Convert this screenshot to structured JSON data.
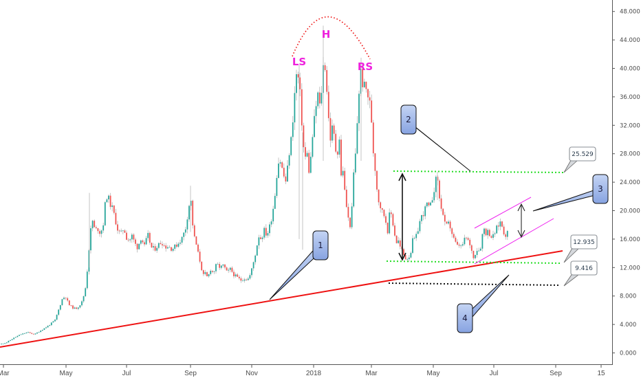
{
  "chart_data": {
    "type": "candlestick",
    "y_axis": {
      "ticks": [
        0,
        4,
        8,
        12,
        16,
        20,
        24,
        28,
        32,
        36,
        40,
        44,
        48
      ],
      "tick_labels": [
        "0.000",
        "4.000",
        "8.000",
        "12.000",
        "16.000",
        "20.000",
        "24.000",
        "28.000",
        "32.000",
        "36.000",
        "40.000",
        "44.000",
        "48.000"
      ],
      "ylim": [
        -1.5,
        49.5
      ]
    },
    "x_axis": {
      "tick_labels": [
        "Mar",
        "May",
        "Jul",
        "Sep",
        "Nov",
        "2018",
        "Mar",
        "May",
        "Jul",
        "Sep",
        "15"
      ]
    },
    "colors": {
      "up": "#26a69a",
      "down": "#ef5350",
      "wick": "#b5b5b5",
      "support": "#ee1111",
      "level": "#22dd22",
      "channel": "#ee22ee",
      "arc": "#ee1111"
    },
    "price_path": [
      [
        0,
        1.2
      ],
      [
        10,
        1.5
      ],
      [
        20,
        2.1
      ],
      [
        30,
        2.6
      ],
      [
        40,
        2.9
      ],
      [
        50,
        2.6
      ],
      [
        60,
        3.2
      ],
      [
        70,
        3.8
      ],
      [
        80,
        4.6
      ],
      [
        85,
        6.0
      ],
      [
        90,
        7.5
      ],
      [
        95,
        8.0
      ],
      [
        100,
        6.8
      ],
      [
        105,
        6.4
      ],
      [
        110,
        6.2
      ],
      [
        115,
        6.6
      ],
      [
        120,
        7.3
      ],
      [
        125,
        9.5
      ],
      [
        128,
        13.0
      ],
      [
        131,
        16.5
      ],
      [
        134,
        18.8
      ],
      [
        138,
        17.2
      ],
      [
        142,
        17.5
      ],
      [
        146,
        16.8
      ],
      [
        150,
        18.0
      ],
      [
        153,
        21.0
      ],
      [
        156,
        22.3
      ],
      [
        160,
        21.0
      ],
      [
        164,
        20.2
      ],
      [
        168,
        18.6
      ],
      [
        172,
        17.0
      ],
      [
        176,
        16.8
      ],
      [
        180,
        17.6
      ],
      [
        184,
        16.2
      ],
      [
        188,
        15.8
      ],
      [
        192,
        16.5
      ],
      [
        196,
        15.4
      ],
      [
        200,
        14.8
      ],
      [
        205,
        16.2
      ],
      [
        210,
        15.0
      ],
      [
        215,
        16.6
      ],
      [
        220,
        14.8
      ],
      [
        225,
        14.6
      ],
      [
        230,
        15.2
      ],
      [
        235,
        15.6
      ],
      [
        240,
        14.9
      ],
      [
        245,
        15.0
      ],
      [
        250,
        14.6
      ],
      [
        255,
        15.0
      ],
      [
        260,
        15.5
      ],
      [
        265,
        16.2
      ],
      [
        270,
        17.6
      ],
      [
        274,
        20.2
      ],
      [
        277,
        22.0
      ],
      [
        280,
        18.2
      ],
      [
        283,
        16.0
      ],
      [
        286,
        15.0
      ],
      [
        289,
        13.5
      ],
      [
        292,
        12.5
      ],
      [
        295,
        10.8
      ],
      [
        298,
        11.2
      ],
      [
        302,
        10.5
      ],
      [
        306,
        11.8
      ],
      [
        310,
        11.2
      ],
      [
        315,
        12.5
      ],
      [
        320,
        12.0
      ],
      [
        325,
        12.3
      ],
      [
        330,
        11.3
      ],
      [
        335,
        11.8
      ],
      [
        340,
        11.0
      ],
      [
        345,
        10.6
      ],
      [
        350,
        10.2
      ],
      [
        355,
        10.5
      ],
      [
        360,
        10.3
      ],
      [
        364,
        11.0
      ],
      [
        368,
        12.5
      ],
      [
        372,
        14.2
      ],
      [
        376,
        16.5
      ],
      [
        380,
        16.0
      ],
      [
        384,
        17.3
      ],
      [
        388,
        16.5
      ],
      [
        392,
        17.8
      ],
      [
        396,
        19.5
      ],
      [
        400,
        22.5
      ],
      [
        404,
        26.8
      ],
      [
        408,
        27.0
      ],
      [
        412,
        25.0
      ],
      [
        416,
        24.0
      ],
      [
        420,
        27.8
      ],
      [
        424,
        30.5
      ],
      [
        428,
        36.0
      ],
      [
        431,
        39.0
      ],
      [
        434,
        38.5
      ],
      [
        437,
        35.5
      ],
      [
        440,
        30.5
      ],
      [
        443,
        27.0
      ],
      [
        446,
        28.5
      ],
      [
        449,
        25.5
      ],
      [
        452,
        27.5
      ],
      [
        455,
        31.2
      ],
      [
        458,
        33.5
      ],
      [
        462,
        36.5
      ],
      [
        465,
        34.5
      ],
      [
        469,
        38.5
      ],
      [
        471,
        42.0
      ],
      [
        474,
        39.0
      ],
      [
        477,
        34.0
      ],
      [
        480,
        30.0
      ],
      [
        484,
        32.0
      ],
      [
        487,
        29.2
      ],
      [
        490,
        27.5
      ],
      [
        493,
        31.0
      ],
      [
        496,
        24.8
      ],
      [
        499,
        26.0
      ],
      [
        502,
        21.5
      ],
      [
        505,
        20.0
      ],
      [
        508,
        17.5
      ],
      [
        511,
        19.0
      ],
      [
        514,
        25.0
      ],
      [
        517,
        28.0
      ],
      [
        519,
        31.5
      ],
      [
        521,
        36.0
      ],
      [
        523,
        37.5
      ],
      [
        525,
        40.0
      ],
      [
        528,
        37.2
      ],
      [
        531,
        37.5
      ],
      [
        534,
        36.5
      ],
      [
        537,
        35.5
      ],
      [
        540,
        33.0
      ],
      [
        543,
        28.0
      ],
      [
        546,
        25.5
      ],
      [
        549,
        22.0
      ],
      [
        552,
        21.0
      ],
      [
        555,
        20.0
      ],
      [
        558,
        19.5
      ],
      [
        561,
        18.5
      ],
      [
        564,
        17.0
      ],
      [
        567,
        20.2
      ],
      [
        570,
        19.0
      ],
      [
        573,
        17.2
      ],
      [
        576,
        15.5
      ],
      [
        579,
        15.8
      ],
      [
        582,
        14.8
      ],
      [
        585,
        14.3
      ],
      [
        588,
        13.5
      ],
      [
        591,
        13.2
      ],
      [
        594,
        13.5
      ],
      [
        597,
        14.0
      ],
      [
        600,
        15.8
      ],
      [
        603,
        16.0
      ],
      [
        606,
        16.5
      ],
      [
        609,
        18.0
      ],
      [
        612,
        19.0
      ],
      [
        615,
        19.5
      ],
      [
        618,
        20.2
      ],
      [
        621,
        21.0
      ],
      [
        624,
        20.2
      ],
      [
        627,
        21.0
      ],
      [
        630,
        22.5
      ],
      [
        633,
        24.0
      ],
      [
        636,
        25.0
      ],
      [
        638,
        22.0
      ],
      [
        641,
        20.8
      ],
      [
        644,
        19.5
      ],
      [
        647,
        18.0
      ],
      [
        650,
        17.8
      ],
      [
        653,
        18.3
      ],
      [
        656,
        17.2
      ],
      [
        659,
        16.2
      ],
      [
        662,
        15.5
      ],
      [
        665,
        15.0
      ],
      [
        668,
        15.2
      ],
      [
        671,
        14.8
      ],
      [
        674,
        15.6
      ],
      [
        677,
        16.2
      ],
      [
        680,
        16.0
      ],
      [
        683,
        15.0
      ],
      [
        686,
        14.5
      ],
      [
        689,
        13.0
      ],
      [
        692,
        14.6
      ],
      [
        695,
        14.5
      ],
      [
        698,
        14.4
      ],
      [
        701,
        16.5
      ],
      [
        704,
        17.5
      ],
      [
        707,
        16.8
      ],
      [
        710,
        17.2
      ],
      [
        713,
        16.5
      ],
      [
        716,
        16.2
      ],
      [
        719,
        16.8
      ],
      [
        722,
        17.5
      ],
      [
        725,
        18.0
      ],
      [
        728,
        18.5
      ],
      [
        731,
        17.5
      ],
      [
        734,
        16.5
      ],
      [
        737,
        16.8
      ],
      [
        740,
        17.2
      ]
    ],
    "head_and_shoulders": {
      "labels": [
        "LS",
        "H",
        "RS"
      ]
    },
    "annotations": [
      {
        "number": "1",
        "type": "callout"
      },
      {
        "number": "2",
        "type": "callout"
      },
      {
        "number": "3",
        "type": "callout"
      },
      {
        "number": "4",
        "type": "callout"
      }
    ],
    "price_labels": [
      "25.529",
      "12.935",
      "9.416"
    ]
  }
}
